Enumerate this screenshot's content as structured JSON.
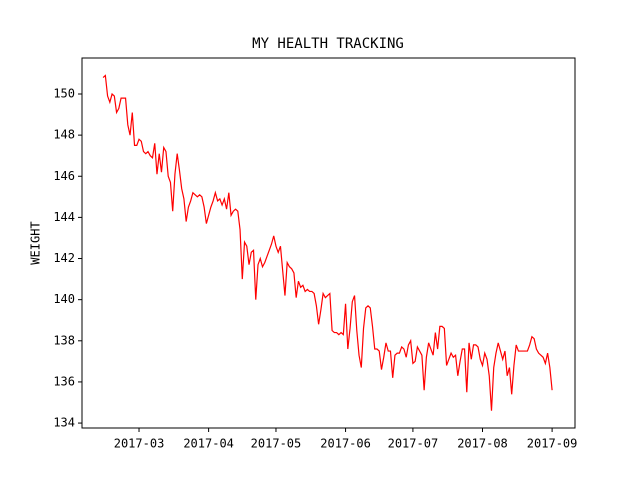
{
  "chart_data": {
    "type": "line",
    "title": "MY HEALTH TRACKING",
    "y_label": "WEIGHT",
    "color": "#ff0000",
    "x": [
      44,
      45,
      46,
      47,
      48,
      49,
      50,
      51,
      52,
      53,
      54,
      55,
      56,
      57,
      58,
      59,
      60,
      61,
      62,
      63,
      64,
      65,
      66,
      67,
      68,
      69,
      70,
      71,
      72,
      73,
      74,
      75,
      76,
      77,
      78,
      79,
      80,
      81,
      82,
      83,
      84,
      85,
      86,
      87,
      88,
      89,
      90,
      91,
      92,
      93,
      94,
      95,
      96,
      97,
      98,
      99,
      100,
      101,
      102,
      103,
      104,
      105,
      106,
      107,
      108,
      109,
      110,
      111,
      112,
      113,
      114,
      115,
      116,
      117,
      118,
      119,
      120,
      121,
      122,
      123,
      124,
      125,
      126,
      127,
      128,
      129,
      130,
      131,
      132,
      133,
      134,
      135,
      136,
      137,
      138,
      139,
      140,
      141,
      142,
      143,
      144,
      145,
      146,
      147,
      148,
      149,
      150,
      151,
      152,
      153,
      154,
      155,
      156,
      157,
      158,
      159,
      160,
      161,
      162,
      163,
      164,
      165,
      166,
      167,
      168,
      169,
      170,
      171,
      172,
      173,
      174,
      175,
      176,
      177,
      178,
      179,
      180,
      181,
      182,
      183,
      184,
      185,
      186,
      187,
      188,
      189,
      190,
      191,
      192,
      193,
      194,
      195,
      196,
      197,
      198,
      199,
      200,
      201,
      202,
      203,
      204,
      205,
      206,
      207,
      208,
      209,
      210,
      211,
      212,
      213,
      214,
      215,
      216,
      217,
      218,
      219,
      220,
      221,
      222,
      223,
      224,
      225,
      226,
      227,
      228,
      229,
      230,
      231,
      232,
      233,
      234,
      235,
      236,
      237,
      238,
      239,
      240,
      241,
      242,
      243,
      244
    ],
    "values": [
      150.8,
      150.9,
      149.9,
      149.6,
      150.0,
      149.9,
      149.1,
      149.3,
      149.8,
      149.8,
      149.8,
      148.5,
      148.0,
      149.1,
      147.5,
      147.5,
      147.8,
      147.7,
      147.2,
      147.1,
      147.2,
      147.0,
      146.9,
      147.6,
      146.1,
      147.1,
      146.2,
      147.4,
      147.2,
      146.0,
      145.7,
      144.3,
      146.1,
      147.1,
      146.3,
      145.4,
      144.9,
      143.8,
      144.5,
      144.8,
      145.2,
      145.1,
      145.0,
      145.1,
      145.0,
      144.5,
      143.7,
      144.1,
      144.5,
      144.8,
      145.2,
      144.8,
      144.9,
      144.6,
      144.9,
      144.4,
      145.2,
      144.1,
      144.3,
      144.4,
      144.3,
      143.4,
      141.0,
      142.8,
      142.6,
      141.7,
      142.3,
      142.4,
      140.0,
      141.7,
      142.0,
      141.6,
      141.8,
      142.1,
      142.4,
      142.7,
      143.1,
      142.6,
      142.3,
      142.6,
      141.4,
      140.2,
      141.8,
      141.6,
      141.5,
      141.3,
      140.1,
      140.9,
      140.6,
      140.7,
      140.4,
      140.5,
      140.4,
      140.4,
      140.3,
      139.7,
      138.8,
      139.5,
      140.3,
      140.1,
      140.2,
      140.3,
      138.5,
      138.4,
      138.4,
      138.3,
      138.4,
      138.3,
      139.8,
      137.6,
      138.6,
      139.9,
      140.2,
      138.5,
      137.3,
      136.7,
      138.6,
      139.6,
      139.7,
      139.6,
      138.7,
      137.6,
      137.6,
      137.5,
      136.6,
      137.2,
      137.9,
      137.5,
      137.5,
      136.2,
      137.3,
      137.4,
      137.4,
      137.7,
      137.6,
      137.2,
      137.8,
      138.0,
      136.9,
      137.0,
      137.7,
      137.5,
      137.3,
      135.6,
      137.2,
      137.9,
      137.6,
      137.3,
      138.4,
      137.6,
      138.7,
      138.7,
      138.6,
      136.8,
      137.1,
      137.4,
      137.2,
      137.3,
      136.3,
      137.0,
      137.6,
      137.6,
      135.5,
      137.9,
      137.1,
      137.8,
      137.8,
      137.7,
      137.1,
      136.8,
      137.4,
      137.1,
      136.3,
      134.6,
      136.7,
      137.4,
      137.9,
      137.5,
      137.1,
      137.5,
      136.3,
      136.7,
      135.4,
      136.8,
      137.8,
      137.5,
      137.5,
      137.5,
      137.5,
      137.5,
      137.8,
      138.2,
      138.1,
      137.6,
      137.4,
      137.3,
      137.2,
      136.9,
      137.4,
      136.7,
      135.6
    ],
    "xlim": [
      34.6,
      254.2
    ],
    "xticks": [
      {
        "value": 60,
        "label": "2017-03"
      },
      {
        "value": 91,
        "label": "2017-04"
      },
      {
        "value": 121,
        "label": "2017-05"
      },
      {
        "value": 152,
        "label": "2017-06"
      },
      {
        "value": 182,
        "label": "2017-07"
      },
      {
        "value": 213,
        "label": "2017-08"
      },
      {
        "value": 244,
        "label": "2017-09"
      }
    ],
    "ylim": [
      133.76,
      151.75
    ],
    "yticks": [
      134,
      136,
      138,
      140,
      142,
      144,
      146,
      148,
      150
    ]
  }
}
